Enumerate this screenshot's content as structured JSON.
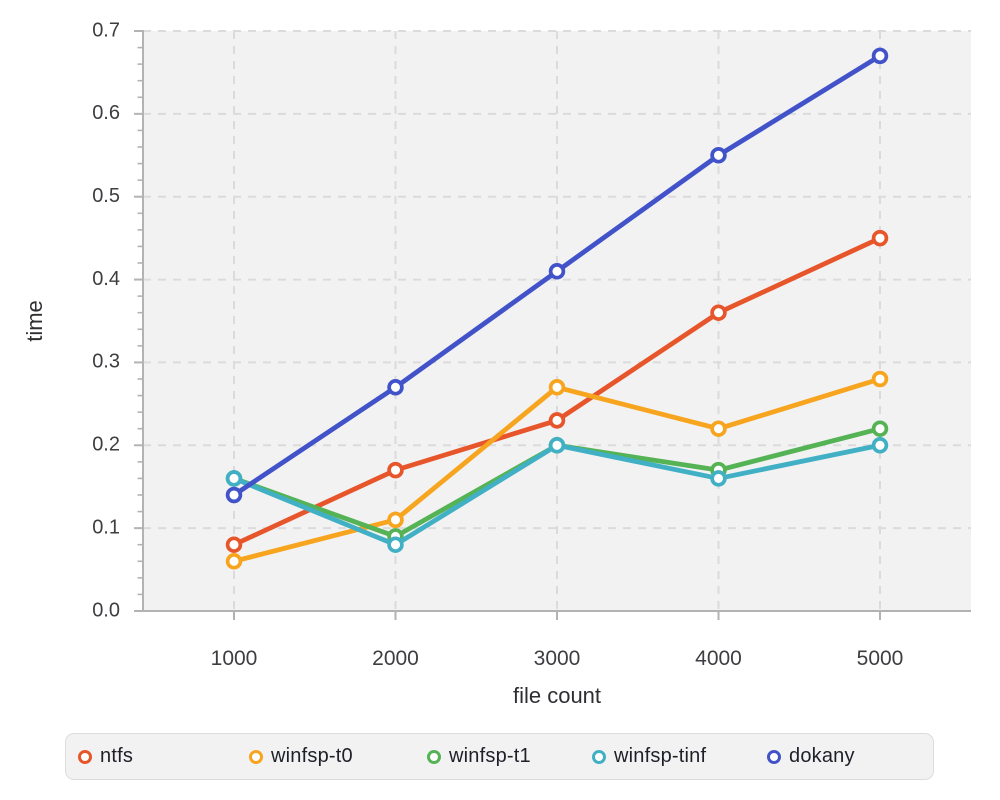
{
  "chart_data": {
    "type": "line",
    "title": "",
    "xlabel": "file count",
    "ylabel": "time",
    "categories": [
      1000,
      2000,
      3000,
      4000,
      5000
    ],
    "x_tick_labels": [
      "1000",
      "2000",
      "3000",
      "4000",
      "5000"
    ],
    "ylim": [
      0,
      0.7
    ],
    "y_tick_labels": [
      "0.0",
      "0.1",
      "0.2",
      "0.3",
      "0.4",
      "0.5",
      "0.6",
      "0.7"
    ],
    "y_major_step": 0.1,
    "y_minor_step": 0.02,
    "grid": true,
    "grid_style": "dashed",
    "legend_position": "bottom",
    "plot_bg_color": "#f2f2f3",
    "grid_color": "#dbdbdd",
    "axis_color": "#b3b3b6",
    "tick_label_color": "#3e3e42",
    "axis_label_color": "#2e2e33",
    "series": [
      {
        "name": "ntfs",
        "color": "#e7562b",
        "values": [
          0.08,
          0.17,
          0.23,
          0.36,
          0.45
        ]
      },
      {
        "name": "winfsp-t0",
        "color": "#f7a41f",
        "values": [
          0.06,
          0.11,
          0.27,
          0.22,
          0.28
        ]
      },
      {
        "name": "winfsp-t1",
        "color": "#55b355",
        "values": [
          0.16,
          0.09,
          0.2,
          0.17,
          0.22
        ]
      },
      {
        "name": "winfsp-tinf",
        "color": "#41b0c5",
        "values": [
          0.16,
          0.08,
          0.2,
          0.16,
          0.2
        ]
      },
      {
        "name": "dokany",
        "color": "#4253c9",
        "values": [
          0.14,
          0.27,
          0.41,
          0.55,
          0.67
        ]
      }
    ]
  }
}
